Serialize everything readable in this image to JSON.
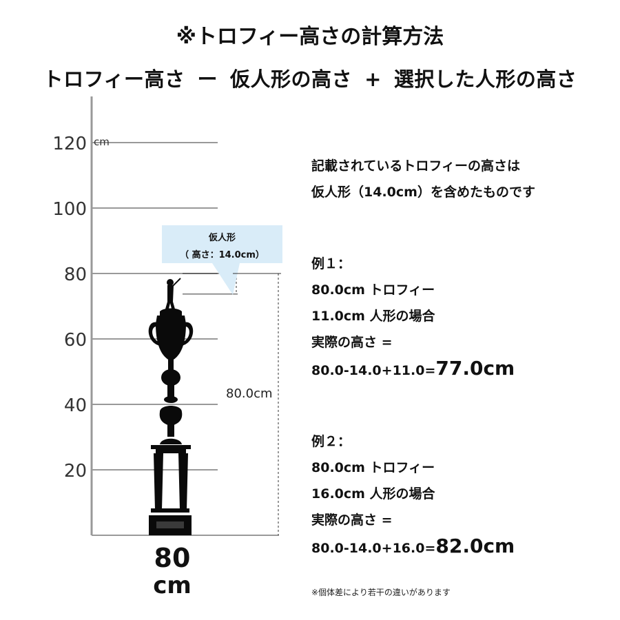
{
  "header": {
    "title": "※トロフィー高さの計算方法",
    "formula": {
      "term1": "トロフィー高さ",
      "op1": "ー",
      "term2": "仮人形の高さ",
      "op2": "+",
      "term3": "選択した人形の高さ"
    }
  },
  "scale": {
    "ticks": [
      "120",
      "100",
      "80",
      "60",
      "40",
      "20"
    ],
    "tick_values": [
      120,
      100,
      80,
      60,
      40,
      20
    ],
    "unit": "cm",
    "max": 130
  },
  "callout": {
    "title": "仮人形",
    "detail": "（ 高さ：14.0cm）"
  },
  "dimension": {
    "label": "80.0cm",
    "value": 80,
    "figure_value": 14
  },
  "trophy": {
    "size_value": "80",
    "size_unit": "cm"
  },
  "intro": {
    "line1": "記載されているトロフィーの高さは",
    "line2": "仮人形（14.0cm）を含めたものです"
  },
  "example1": {
    "heading": "例１：",
    "trophy": "80.0cm トロフィー",
    "figure": "11.0cm 人形の場合",
    "result_label": "実際の高さ =",
    "formula": "80.0-14.0+11.0=",
    "result": "77.0cm"
  },
  "example2": {
    "heading": "例２：",
    "trophy": "80.0cm トロフィー",
    "figure": "16.0cm 人形の場合",
    "result_label": "実際の高さ =",
    "formula": "80.0-14.0+16.0=",
    "result": "82.0cm"
  },
  "footnote": "※個体差により若干の違いがあります",
  "colors": {
    "callout_bg": "#d9ecf8",
    "grid": "#999999",
    "trophy": "#0a0a0a"
  }
}
